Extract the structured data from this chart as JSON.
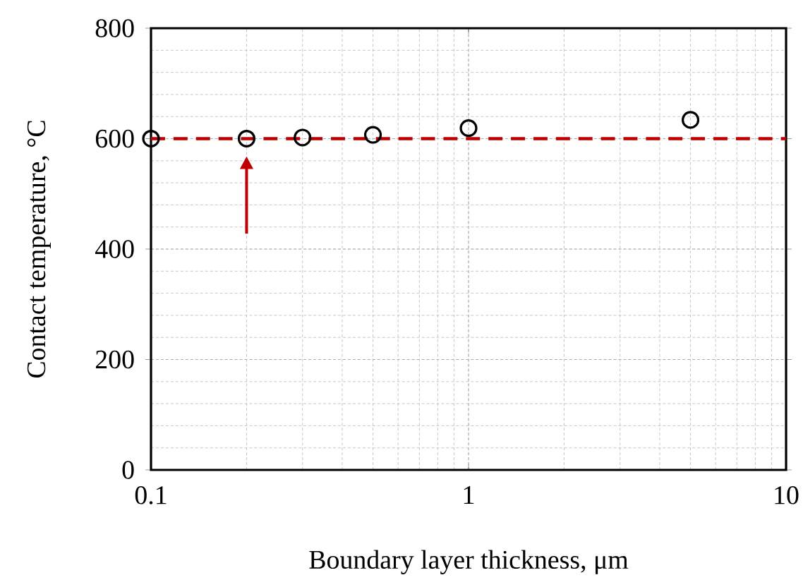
{
  "chart_data": {
    "type": "scatter",
    "xlabel": "Boundary layer thickness,   μm",
    "ylabel": "Contact temperature, °C",
    "x": [
      0.1,
      0.2,
      0.3,
      0.5,
      1,
      5
    ],
    "values": [
      600,
      600,
      602,
      607,
      619,
      634
    ],
    "color": "#000000",
    "log": "x",
    "xlim": [
      0.1,
      10
    ],
    "xticks": [
      0.1,
      1,
      10
    ],
    "ylim": [
      0,
      800
    ],
    "yticks": [
      0,
      200,
      400,
      600,
      800
    ],
    "grid": true,
    "marker": "circle",
    "ref_lines": [
      {
        "axis": "y",
        "value": 600,
        "color": "#c00000",
        "line_style": "dashed"
      }
    ]
  }
}
